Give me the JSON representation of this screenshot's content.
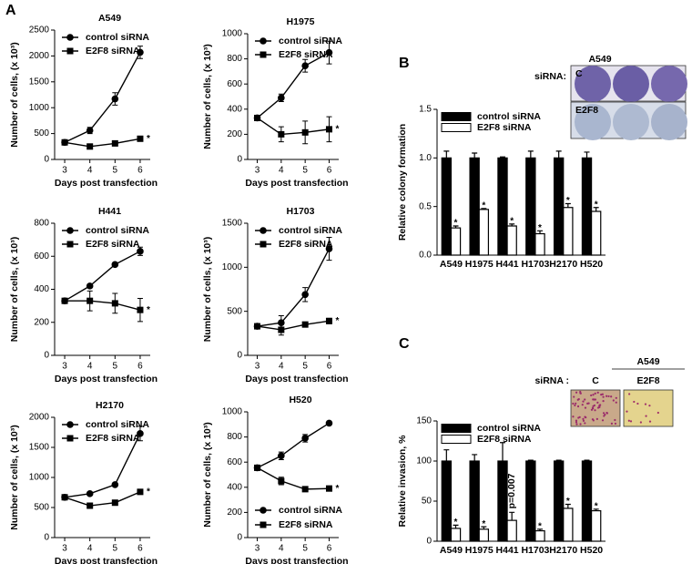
{
  "panels": [
    "A",
    "B",
    "C"
  ],
  "chart_data": [
    {
      "type": "line",
      "title": "A549",
      "xlabel": "Days post transfection",
      "ylabel": "Number of cells, (x 10³)",
      "x": [
        3,
        4,
        5,
        6
      ],
      "xlim": [
        2.6,
        6.4
      ],
      "xticks": [
        3,
        4,
        5,
        6
      ],
      "ylim": [
        0,
        2500
      ],
      "yticks": [
        0,
        500,
        1000,
        1500,
        2000,
        2500
      ],
      "legend": "top-left",
      "series": [
        {
          "name": "control siRNA",
          "color": "#000000",
          "marker": "circle",
          "values": [
            330,
            560,
            1170,
            2070
          ],
          "errors": [
            20,
            60,
            120,
            120
          ],
          "significance": [
            null,
            null,
            null,
            null
          ]
        },
        {
          "name": "E2F8 siRNA",
          "color": "#000000",
          "marker": "square",
          "values": [
            330,
            250,
            310,
            400
          ],
          "errors": [
            20,
            20,
            20,
            20
          ],
          "significance": [
            null,
            null,
            null,
            "*"
          ]
        }
      ]
    },
    {
      "type": "line",
      "title": "H1975",
      "xlabel": "Days post transfection",
      "ylabel": "Number of cells, (x 10³)",
      "x": [
        3,
        4,
        5,
        6
      ],
      "xlim": [
        2.6,
        6.4
      ],
      "xticks": [
        3,
        4,
        5,
        6
      ],
      "ylim": [
        0,
        1000
      ],
      "yticks": [
        0,
        200,
        400,
        600,
        800,
        1000
      ],
      "legend": "top-left",
      "series": [
        {
          "name": "control siRNA",
          "color": "#000000",
          "marker": "circle",
          "values": [
            330,
            490,
            745,
            850
          ],
          "errors": [
            10,
            30,
            50,
            90
          ],
          "significance": [
            null,
            null,
            null,
            null
          ]
        },
        {
          "name": "E2F8 siRNA",
          "color": "#000000",
          "marker": "square",
          "values": [
            330,
            200,
            215,
            240
          ],
          "errors": [
            10,
            60,
            90,
            100
          ],
          "significance": [
            null,
            null,
            null,
            "*"
          ]
        }
      ]
    },
    {
      "type": "line",
      "title": "H441",
      "xlabel": "Days post transfection",
      "ylabel": "Number of cells, (x 10³)",
      "x": [
        3,
        4,
        5,
        6
      ],
      "xlim": [
        2.6,
        6.4
      ],
      "xticks": [
        3,
        4,
        5,
        6
      ],
      "ylim": [
        0,
        800
      ],
      "yticks": [
        0,
        200,
        400,
        600,
        800
      ],
      "legend": "top-left",
      "series": [
        {
          "name": "control siRNA",
          "color": "#000000",
          "marker": "circle",
          "values": [
            330,
            420,
            550,
            630
          ],
          "errors": [
            10,
            10,
            10,
            25
          ],
          "significance": [
            null,
            null,
            null,
            null
          ]
        },
        {
          "name": "E2F8 siRNA",
          "color": "#000000",
          "marker": "square",
          "values": [
            330,
            330,
            315,
            275
          ],
          "errors": [
            10,
            60,
            60,
            70
          ],
          "significance": [
            null,
            null,
            null,
            "*"
          ]
        }
      ]
    },
    {
      "type": "line",
      "title": "H1703",
      "xlabel": "Days post transfection",
      "ylabel": "Number of cells, (x 10³)",
      "x": [
        3,
        4,
        5,
        6
      ],
      "xlim": [
        2.6,
        6.4
      ],
      "xticks": [
        3,
        4,
        5,
        6
      ],
      "ylim": [
        0,
        1500
      ],
      "yticks": [
        0,
        500,
        1000,
        1500
      ],
      "legend": "top-left",
      "series": [
        {
          "name": "control siRNA",
          "color": "#000000",
          "marker": "circle",
          "values": [
            330,
            370,
            690,
            1210
          ],
          "errors": [
            10,
            80,
            80,
            130
          ],
          "significance": [
            null,
            null,
            null,
            null
          ]
        },
        {
          "name": "E2F8 siRNA",
          "color": "#000000",
          "marker": "square",
          "values": [
            330,
            290,
            350,
            390
          ],
          "errors": [
            10,
            60,
            20,
            30
          ],
          "significance": [
            null,
            null,
            null,
            "*"
          ]
        }
      ]
    },
    {
      "type": "line",
      "title": "H2170",
      "xlabel": "Days post transfection",
      "ylabel": "Number of cells, (x 10³)",
      "x": [
        3,
        4,
        5,
        6
      ],
      "xlim": [
        2.6,
        6.4
      ],
      "xticks": [
        3,
        4,
        5,
        6
      ],
      "ylim": [
        0,
        2000
      ],
      "yticks": [
        0,
        500,
        1000,
        1500,
        2000
      ],
      "legend": "top-left",
      "series": [
        {
          "name": "control siRNA",
          "color": "#000000",
          "marker": "circle",
          "values": [
            670,
            730,
            880,
            1730
          ],
          "errors": [
            20,
            20,
            20,
            120
          ],
          "significance": [
            null,
            null,
            null,
            null
          ]
        },
        {
          "name": "E2F8 siRNA",
          "color": "#000000",
          "marker": "square",
          "values": [
            670,
            530,
            580,
            760
          ],
          "errors": [
            20,
            40,
            20,
            20
          ],
          "significance": [
            null,
            null,
            null,
            "*"
          ]
        }
      ]
    },
    {
      "type": "line",
      "title": "H520",
      "xlabel": "Days post transfection",
      "ylabel": "Number of cells, (x 10³)",
      "x": [
        3,
        4,
        5,
        6
      ],
      "xlim": [
        2.6,
        6.4
      ],
      "xticks": [
        3,
        4,
        5,
        6
      ],
      "ylim": [
        0,
        1000
      ],
      "yticks": [
        0,
        200,
        400,
        600,
        800,
        1000
      ],
      "legend": "bottom-left",
      "series": [
        {
          "name": "control siRNA",
          "color": "#000000",
          "marker": "circle",
          "values": [
            555,
            650,
            790,
            910
          ],
          "errors": [
            10,
            30,
            30,
            10
          ],
          "significance": [
            null,
            null,
            null,
            null
          ]
        },
        {
          "name": "E2F8 siRNA",
          "color": "#000000",
          "marker": "square",
          "values": [
            555,
            450,
            385,
            390
          ],
          "errors": [
            10,
            30,
            10,
            20
          ],
          "significance": [
            null,
            null,
            null,
            "*"
          ]
        }
      ]
    },
    {
      "type": "bar",
      "ylabel": "Relative colony formation",
      "categories": [
        "A549",
        "H1975",
        "H441",
        "H1703",
        "H2170",
        "H520"
      ],
      "ylim": [
        0,
        1.5
      ],
      "yticks": [
        {
          "value": 0,
          "label": "0.0"
        },
        0.5,
        {
          "value": 1,
          "label": "1.0"
        },
        1.5
      ],
      "legend": "top-left",
      "series": [
        {
          "name": "control siRNA",
          "color": "#000000",
          "values": [
            1,
            1,
            1,
            1,
            1,
            1
          ],
          "errors": [
            0.07,
            0.05,
            0.01,
            0.07,
            0.07,
            0.06
          ],
          "significance": [
            null,
            null,
            null,
            null,
            null,
            null
          ]
        },
        {
          "name": "E2F8 siRNA",
          "color": "#ffffff",
          "values": [
            0.28,
            0.47,
            0.3,
            0.22,
            0.49,
            0.45
          ],
          "errors": [
            0.02,
            0.01,
            0.02,
            0.03,
            0.04,
            0.04
          ],
          "significance": [
            "*",
            "*",
            "*",
            "*",
            "*",
            "*"
          ]
        }
      ],
      "inset": {
        "title": "A549",
        "label": "siRNA:",
        "groups": [
          "C",
          "E2F8"
        ]
      }
    },
    {
      "type": "bar",
      "ylabel": "Relative invasion, %",
      "categories": [
        "A549",
        "H1975",
        "H441",
        "H1703",
        "H2170",
        "H520"
      ],
      "ylim": [
        0,
        150
      ],
      "yticks": [
        0,
        50,
        100,
        150
      ],
      "legend": "top-left",
      "series": [
        {
          "name": "control siRNA",
          "color": "#000000",
          "values": [
            100,
            100,
            100,
            100,
            100,
            100
          ],
          "errors": [
            14,
            8,
            23,
            1,
            1,
            1
          ],
          "significance": [
            null,
            null,
            null,
            null,
            null,
            null
          ]
        },
        {
          "name": "E2F8 siRNA",
          "color": "#ffffff",
          "values": [
            16,
            15,
            26,
            13,
            41,
            38
          ],
          "errors": [
            4,
            3,
            10,
            2,
            5,
            2
          ],
          "significance": [
            "*",
            "*",
            "p=0.007",
            "*",
            "*",
            "*"
          ]
        }
      ],
      "inset": {
        "title": "A549",
        "label": "siRNA :",
        "groups": [
          "C",
          "E2F8"
        ]
      }
    }
  ]
}
